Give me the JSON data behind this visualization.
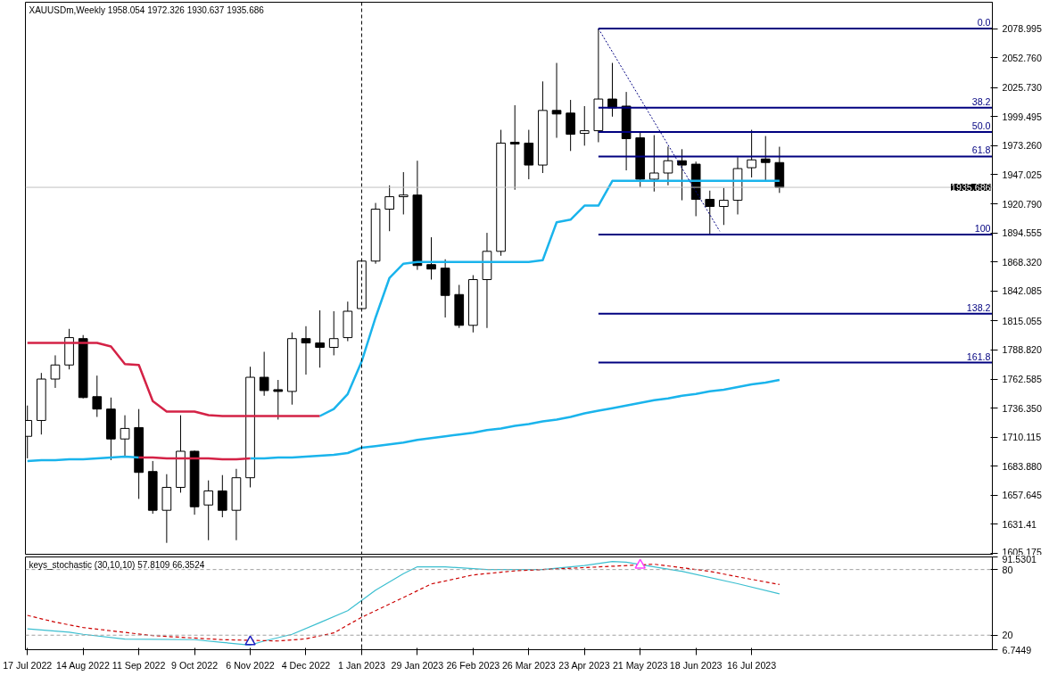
{
  "chart_data": [
    {
      "type": "candlestick",
      "title": "XAUUSDm,Weekly  1958.054 1972.326 1930.637 1935.686",
      "x": [
        "2022-07-17",
        "2022-07-24",
        "2022-07-31",
        "2022-08-07",
        "2022-08-14",
        "2022-08-21",
        "2022-08-28",
        "2022-09-04",
        "2022-09-11",
        "2022-09-18",
        "2022-09-25",
        "2022-10-02",
        "2022-10-09",
        "2022-10-16",
        "2022-10-23",
        "2022-10-30",
        "2022-11-06",
        "2022-11-13",
        "2022-11-20",
        "2022-11-27",
        "2022-12-04",
        "2022-12-11",
        "2022-12-18",
        "2022-12-25",
        "2023-01-01",
        "2023-01-08",
        "2023-01-15",
        "2023-01-22",
        "2023-01-29",
        "2023-02-05",
        "2023-02-12",
        "2023-02-19",
        "2023-02-26",
        "2023-03-05",
        "2023-03-12",
        "2023-03-19",
        "2023-03-26",
        "2023-04-02",
        "2023-04-09",
        "2023-04-16",
        "2023-04-23",
        "2023-04-30",
        "2023-05-07",
        "2023-05-14",
        "2023-05-21",
        "2023-05-28",
        "2023-06-04",
        "2023-06-11",
        "2023-06-18",
        "2023-06-25",
        "2023-07-02",
        "2023-07-09",
        "2023-07-16",
        "2023-07-23",
        "2023-07-30"
      ],
      "ohlc": [
        [
          1710.9,
          1738.7,
          1691.0,
          1725.2
        ],
        [
          1725.2,
          1768.1,
          1712.5,
          1762.6
        ],
        [
          1762.6,
          1784.0,
          1754.6,
          1775.3
        ],
        [
          1775.3,
          1807.9,
          1771.3,
          1800.0
        ],
        [
          1799.1,
          1802.3,
          1745.1,
          1745.9
        ],
        [
          1746.7,
          1765.7,
          1728.4,
          1735.5
        ],
        [
          1735.5,
          1745.9,
          1689.4,
          1708.5
        ],
        [
          1708.5,
          1729.9,
          1691.8,
          1718.0
        ],
        [
          1718.8,
          1735.5,
          1654.4,
          1678.3
        ],
        [
          1679.1,
          1688.6,
          1641.0,
          1644.1
        ],
        [
          1644.1,
          1676.7,
          1614.7,
          1664.8
        ],
        [
          1664.8,
          1729.9,
          1660.0,
          1697.4
        ],
        [
          1697.4,
          1698.0,
          1640.1,
          1647.3
        ],
        [
          1648.9,
          1671.1,
          1617.1,
          1661.6
        ],
        [
          1661.6,
          1675.9,
          1637.8,
          1644.1
        ],
        [
          1644.1,
          1681.5,
          1617.1,
          1673.5
        ],
        [
          1673.5,
          1773.7,
          1664.8,
          1764.2
        ],
        [
          1764.2,
          1787.2,
          1747.5,
          1752.2
        ],
        [
          1753.0,
          1761.8,
          1726.0,
          1751.4
        ],
        [
          1751.4,
          1804.7,
          1739.5,
          1799.1
        ],
        [
          1799.1,
          1810.3,
          1766.6,
          1795.2
        ],
        [
          1795.2,
          1824.6,
          1772.9,
          1791.2
        ],
        [
          1791.2,
          1823.8,
          1784.0,
          1799.1
        ],
        [
          1800.0,
          1832.5,
          1796.8,
          1823.8
        ],
        [
          1826.2,
          1870.7,
          1824.6,
          1869.1
        ],
        [
          1869.1,
          1921.6,
          1866.7,
          1916.0
        ],
        [
          1916.0,
          1937.5,
          1896.1,
          1927.2
        ],
        [
          1927.2,
          1949.4,
          1911.2,
          1928.7
        ],
        [
          1928.7,
          1959.7,
          1861.2,
          1865.1
        ],
        [
          1865.9,
          1890.6,
          1852.4,
          1861.9
        ],
        [
          1862.7,
          1870.7,
          1818.2,
          1838.1
        ],
        [
          1838.9,
          1847.6,
          1808.7,
          1811.1
        ],
        [
          1811.1,
          1856.4,
          1804.7,
          1852.4
        ],
        [
          1852.4,
          1894.6,
          1808.7,
          1877.9
        ],
        [
          1877.9,
          1987.6,
          1873.9,
          1975.6
        ],
        [
          1976.4,
          2009.8,
          1933.5,
          1974.8
        ],
        [
          1975.6,
          1987.6,
          1943.0,
          1955.8
        ],
        [
          1955.8,
          2031.3,
          1948.6,
          2005.1
        ],
        [
          2005.1,
          2048.0,
          1980.4,
          2001.9
        ],
        [
          2002.7,
          2014.6,
          1968.5,
          1983.6
        ],
        [
          1984.4,
          2009.0,
          1973.3,
          1986.8
        ],
        [
          1986.8,
          2078.995,
          1976.4,
          2015.4
        ],
        [
          2015.4,
          2048.0,
          1999.5,
          2007.4
        ],
        [
          2009.0,
          2021.8,
          1951.0,
          1979.6
        ],
        [
          1980.4,
          1985.2,
          1935.9,
          1943.0
        ],
        [
          1943.0,
          1982.8,
          1931.9,
          1948.6
        ],
        [
          1948.6,
          1972.5,
          1937.5,
          1959.7
        ],
        [
          1959.7,
          1970.1,
          1924.0,
          1955.8
        ],
        [
          1956.6,
          1958.9,
          1909.6,
          1924.8
        ],
        [
          1924.8,
          1932.7,
          1893.0,
          1918.4
        ],
        [
          1918.4,
          1935.1,
          1901.7,
          1924.0
        ],
        [
          1924.0,
          1962.9,
          1911.2,
          1952.6
        ],
        [
          1953.4,
          1987.6,
          1944.6,
          1960.5
        ],
        [
          1961.3,
          1982.0,
          1941.5,
          1958.1
        ],
        [
          1958.054,
          1972.326,
          1930.637,
          1935.686
        ]
      ],
      "series": [
        {
          "type": "line",
          "color": "#d42246",
          "values": [
            1795.2,
            1795.2,
            1795.2,
            1795.2,
            1795.2,
            1795.2,
            1792.0,
            1776.1,
            1775.3,
            1742.7,
            1733.2,
            1733.2,
            1733.2,
            1730.0,
            1729.2,
            1729.2,
            1729.2,
            1729.2,
            1729.2,
            1729.2,
            1729.2,
            1729.2,
            null,
            null,
            null,
            null,
            null,
            null,
            null,
            null,
            null,
            null,
            null,
            null,
            null,
            null,
            null,
            null,
            null,
            null,
            null,
            null,
            null,
            null,
            null,
            null,
            null,
            null,
            null,
            null,
            null,
            null,
            null,
            null,
            null
          ]
        },
        {
          "type": "line",
          "color": "#1ab4ec",
          "values": [
            null,
            null,
            null,
            null,
            null,
            null,
            null,
            null,
            null,
            null,
            null,
            null,
            null,
            null,
            null,
            null,
            null,
            null,
            null,
            null,
            null,
            1729.2,
            1735.5,
            1749.1,
            1778.5,
            1818.2,
            1854.0,
            1866.7,
            1868.3,
            1868.3,
            1868.3,
            1868.3,
            1868.3,
            1868.3,
            1868.3,
            1868.3,
            1868.3,
            1869.9,
            1904.1,
            1906.5,
            1919.2,
            1919.2,
            1941.5,
            1941.5,
            1941.5,
            1941.5,
            1941.5,
            1941.5,
            1941.5,
            1941.5,
            1941.5,
            1941.5,
            1941.5,
            1941.5,
            1941.5
          ]
        },
        {
          "type": "line",
          "color": "#1ab4ec",
          "values": [
            1688.6,
            1689.4,
            1689.4,
            1690.2,
            1690.2,
            1691.0,
            1691.8,
            1692.6,
            1691.8,
            null,
            null,
            null,
            null,
            null,
            null,
            null,
            1691.0,
            1691.0,
            1691.8,
            1691.8,
            1692.6,
            1693.4,
            1694.2,
            1695.8,
            1700.6,
            1702.1,
            1703.7,
            1705.3,
            1707.7,
            1709.3,
            1710.9,
            1712.5,
            1714.1,
            1716.5,
            1718.0,
            1720.4,
            1722.0,
            1724.4,
            1726.0,
            1728.4,
            1731.6,
            1734.0,
            1736.3,
            1738.7,
            1741.1,
            1743.5,
            1745.1,
            1747.5,
            1749.1,
            1751.5,
            1753.0,
            1755.4,
            1757.8,
            1759.4,
            1761.8
          ]
        },
        {
          "type": "line",
          "color": "#d42246",
          "values": [
            null,
            null,
            null,
            null,
            null,
            null,
            null,
            null,
            1691.8,
            1691.8,
            1691.0,
            1691.0,
            1691.0,
            1691.0,
            1690.2,
            1690.2,
            1691.0,
            null,
            null,
            null,
            null,
            null,
            null,
            null,
            null,
            null,
            null,
            null,
            null,
            null,
            null,
            null,
            null,
            null,
            null,
            null,
            null,
            null,
            null,
            null,
            null,
            null,
            null,
            null,
            null,
            null,
            null,
            null,
            null,
            null,
            null,
            null,
            null,
            null,
            null
          ]
        },
        {
          "type": "line",
          "color": "#000080",
          "line_style": "dotted",
          "x": [
            "2023-04-30",
            "2023-06-30"
          ],
          "values": [
            2078.995,
            1896.0
          ]
        },
        {
          "type": "line",
          "name": "0.0",
          "color": "#000080",
          "x": [
            "2023-04-30",
            "2023-11-14"
          ],
          "values": [
            2078.995,
            2078.995
          ]
        },
        {
          "type": "line",
          "name": "38.2",
          "color": "#000080",
          "x": [
            "2023-04-30",
            "2023-11-14"
          ],
          "values": [
            2007.6,
            2007.6
          ]
        },
        {
          "type": "line",
          "name": "50.0",
          "color": "#000080",
          "x": [
            "2023-04-30",
            "2023-11-14"
          ],
          "values": [
            1985.6,
            1985.6
          ]
        },
        {
          "type": "line",
          "name": "61.8",
          "color": "#000080",
          "x": [
            "2023-04-30",
            "2023-11-14"
          ],
          "values": [
            1963.6,
            1963.6
          ]
        },
        {
          "type": "line",
          "name": "100",
          "color": "#000080",
          "x": [
            "2023-04-30",
            "2023-11-14"
          ],
          "values": [
            1893.0,
            1893.0
          ]
        },
        {
          "type": "line",
          "name": "138.2",
          "color": "#000080",
          "x": [
            "2023-04-30",
            "2023-11-14"
          ],
          "values": [
            1821.6,
            1821.6
          ]
        },
        {
          "type": "line",
          "name": "161.8",
          "color": "#000080",
          "x": [
            "2023-04-30",
            "2023-11-14"
          ],
          "values": [
            1777.5,
            1777.5
          ]
        }
      ],
      "ref_lines": [
        {
          "axis": "x",
          "value": "2023-01-01",
          "color": "#000000",
          "line_style": "dashed"
        },
        {
          "axis": "y",
          "value": 1935.686,
          "label": "1935.686",
          "color": "#c0c0c0"
        }
      ],
      "xlim": [
        "2022-07-16",
        "2023-11-14"
      ],
      "ylim": [
        1603.6,
        2102.8
      ],
      "yticks": [
        2078.995,
        {
          "value": 2052.76,
          "label": "2052.760"
        },
        {
          "value": 2025.73,
          "label": "2025.730"
        },
        1999.495,
        {
          "value": 1973.26,
          "label": "1973.260"
        },
        1947.025,
        {
          "value": 1920.79,
          "label": "1920.790"
        },
        1894.555,
        {
          "value": 1868.32,
          "label": "1868.320"
        },
        1842.085,
        1815.055,
        {
          "value": 1788.82,
          "label": "1788.820"
        },
        1762.585,
        {
          "value": 1736.35,
          "label": "1736.350"
        },
        1710.115,
        {
          "value": 1683.88,
          "label": "1683.880"
        },
        1657.645,
        1631.41,
        1605.175
      ],
      "tick_labels": "y"
    },
    {
      "type": "line",
      "title": "keys_stochastic (30,10,10) 57.8109 66.3524",
      "series": [
        {
          "color": "#3cbfd0",
          "x": [
            "2022-07-17",
            "2022-08-07",
            "2022-08-14",
            "2022-09-04",
            "2022-10-09",
            "2022-10-23",
            "2022-11-06",
            "2022-11-13",
            "2022-11-27",
            "2022-12-11",
            "2022-12-25",
            "2023-01-08",
            "2023-01-22",
            "2023-01-29",
            "2023-02-12",
            "2023-03-05",
            "2023-04-02",
            "2023-04-23",
            "2023-05-07",
            "2023-05-14",
            "2023-05-28",
            "2023-06-11",
            "2023-07-09",
            "2023-07-30"
          ],
          "values": [
            25.8,
            22.7,
            20.8,
            16.5,
            15.9,
            13.4,
            11.0,
            14.7,
            20.8,
            31.5,
            42.4,
            61.1,
            76.3,
            82.5,
            82.5,
            80.0,
            80.0,
            83.7,
            87.4,
            86.8,
            82.5,
            78.4,
            67.1,
            57.8109
          ]
        },
        {
          "color": "#cc0000",
          "line_style": "dashed",
          "x": [
            "2022-07-17",
            "2022-07-31",
            "2022-08-14",
            "2022-09-18",
            "2022-10-23",
            "2022-11-20",
            "2022-12-04",
            "2022-12-18",
            "2023-01-01",
            "2023-01-22",
            "2023-02-05",
            "2023-02-26",
            "2023-03-19",
            "2023-04-23",
            "2023-05-28",
            "2023-06-25",
            "2023-07-09",
            "2023-07-30"
          ],
          "values": [
            38.1,
            31.9,
            27.0,
            19.6,
            15.9,
            14.7,
            16.7,
            22.1,
            36.4,
            54.5,
            66.8,
            75.1,
            78.8,
            81.8,
            84.9,
            78.4,
            73.4,
            66.3524
          ]
        },
        {
          "type": "scatter",
          "marker": "triangle",
          "color": "#2020c0",
          "x": [
            "2022-11-06"
          ],
          "values": [
            14.0
          ]
        },
        {
          "type": "scatter",
          "marker": "triangle",
          "color": "#ff40ff",
          "x": [
            "2023-05-21"
          ],
          "values": [
            84.0
          ]
        }
      ],
      "ref_lines": [
        {
          "axis": "x",
          "value": "2023-01-01",
          "color": "#000000",
          "line_style": "dashed"
        },
        {
          "axis": "y",
          "value": 80,
          "color": "#a0a0a0",
          "line_style": "dashed"
        },
        {
          "axis": "y",
          "value": 20,
          "color": "#a0a0a0",
          "line_style": "dashed"
        }
      ],
      "xlim": [
        "2022-07-16",
        "2023-11-14"
      ],
      "ylim": [
        6.7449,
        91.5301
      ],
      "yticks": [
        91.5301,
        80,
        20,
        6.7449
      ],
      "xticks": [
        {
          "value": "2022-07-17",
          "label": "17 Jul 2022"
        },
        {
          "value": "2022-08-14",
          "label": "14 Aug 2022"
        },
        {
          "value": "2022-09-11",
          "label": "11 Sep 2022"
        },
        {
          "value": "2022-10-09",
          "label": "9 Oct 2022"
        },
        {
          "value": "2022-11-06",
          "label": "6 Nov 2022"
        },
        {
          "value": "2022-12-04",
          "label": "4 Dec 2022"
        },
        {
          "value": "2023-01-01",
          "label": "1 Jan 2023"
        },
        {
          "value": "2023-01-29",
          "label": "29 Jan 2023"
        },
        {
          "value": "2023-02-26",
          "label": "26 Feb 2023"
        },
        {
          "value": "2023-03-26",
          "label": "26 Mar 2023"
        },
        {
          "value": "2023-04-23",
          "label": "23 Apr 2023"
        },
        {
          "value": "2023-05-21",
          "label": "21 May 2023"
        },
        {
          "value": "2023-06-18",
          "label": "18 Jun 2023"
        },
        {
          "value": "2023-07-16",
          "label": "16 Jul 2023"
        }
      ]
    }
  ]
}
